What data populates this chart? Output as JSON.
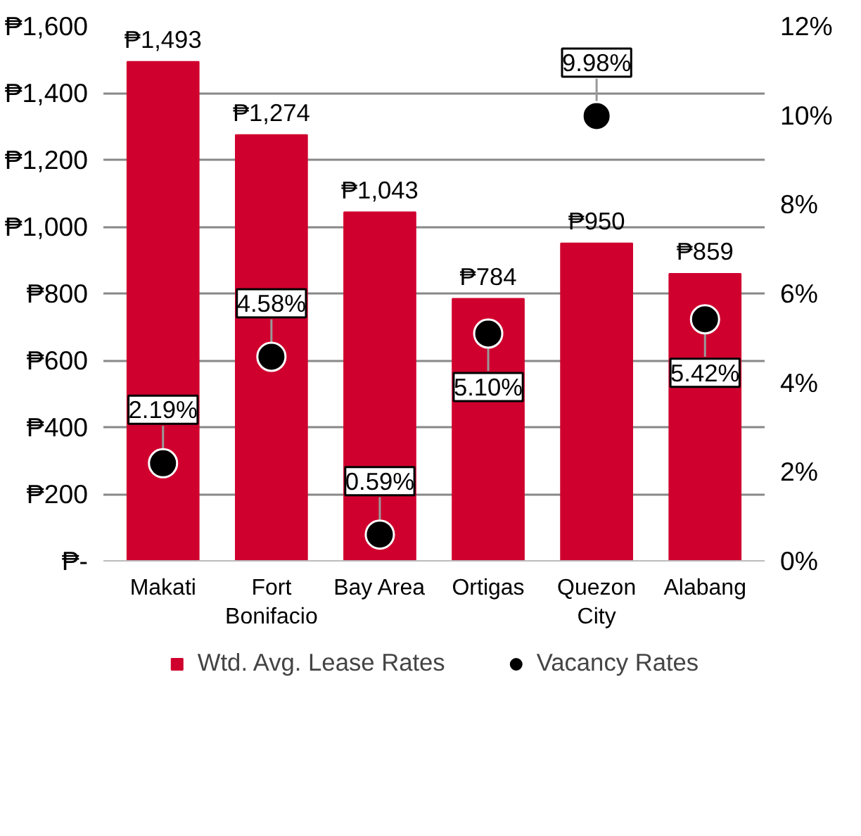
{
  "chart_data": {
    "type": "bar",
    "categories": [
      "Makati",
      "Fort Bonifacio",
      "Bay Area",
      "Ortigas",
      "Quezon City",
      "Alabang"
    ],
    "series": [
      {
        "name": "Wtd. Avg. Lease Rates",
        "type": "bar",
        "color": "#d0002e",
        "values": [
          1493,
          1274,
          1043,
          784,
          950,
          859
        ],
        "value_labels": [
          "₱1,493",
          "₱1,274",
          "₱1,043",
          "₱784",
          "₱950",
          "₱859"
        ]
      },
      {
        "name": "Vacancy Rates",
        "type": "scatter",
        "axis": "y2",
        "color": "#000000",
        "marker": "circle",
        "values": [
          2.19,
          4.58,
          0.59,
          5.1,
          9.98,
          5.42
        ],
        "value_labels": [
          "2.19%",
          "4.58%",
          "0.59%",
          "5.10%",
          "9.98%",
          "5.42%"
        ]
      }
    ],
    "ylim": [
      0,
      1600
    ],
    "yticks": [
      {
        "value": 0,
        "label": "₱-"
      },
      {
        "value": 200,
        "label": "₱200"
      },
      {
        "value": 400,
        "label": "₱400"
      },
      {
        "value": 600,
        "label": "₱600"
      },
      {
        "value": 800,
        "label": "₱800"
      },
      {
        "value": 1000,
        "label": "₱1,000"
      },
      {
        "value": 1200,
        "label": "₱1,200"
      },
      {
        "value": 1400,
        "label": "₱1,400"
      },
      {
        "value": 1600,
        "label": "₱1,600"
      }
    ],
    "y2lim": [
      0,
      12
    ],
    "y2ticks": [
      {
        "value": 0,
        "label": "0%"
      },
      {
        "value": 2,
        "label": "2%"
      },
      {
        "value": 4,
        "label": "4%"
      },
      {
        "value": 6,
        "label": "6%"
      },
      {
        "value": 8,
        "label": "8%"
      },
      {
        "value": 10,
        "label": "10%"
      },
      {
        "value": 12,
        "label": "12%"
      }
    ],
    "grid": "y",
    "legend": "bottom"
  }
}
